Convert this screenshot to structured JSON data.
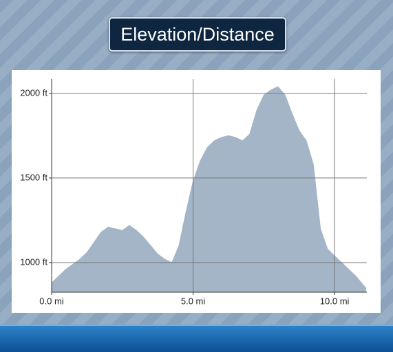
{
  "chart_data": {
    "type": "area",
    "title": "Elevation/Distance",
    "color": "#a3b5c6",
    "x": [
      0,
      0.25,
      0.5,
      0.75,
      1.0,
      1.25,
      1.5,
      1.75,
      2.0,
      2.25,
      2.5,
      2.75,
      3.0,
      3.25,
      3.5,
      3.75,
      4.0,
      4.25,
      4.5,
      4.75,
      5.0,
      5.25,
      5.5,
      5.75,
      6.0,
      6.25,
      6.5,
      6.75,
      7.0,
      7.25,
      7.5,
      7.75,
      8.0,
      8.25,
      8.5,
      8.75,
      9.0,
      9.25,
      9.5,
      9.75,
      10.0,
      10.25,
      10.5,
      10.75,
      11.0,
      11.1
    ],
    "values": [
      880,
      920,
      960,
      990,
      1020,
      1060,
      1120,
      1180,
      1210,
      1200,
      1190,
      1220,
      1190,
      1150,
      1100,
      1050,
      1020,
      1000,
      1100,
      1300,
      1480,
      1600,
      1680,
      1720,
      1740,
      1750,
      1740,
      1720,
      1760,
      1900,
      1990,
      2020,
      2040,
      1990,
      1880,
      1780,
      1720,
      1580,
      1200,
      1080,
      1040,
      1000,
      960,
      920,
      870,
      850
    ],
    "xlim": [
      0,
      11.14
    ],
    "ylim": [
      825,
      2085
    ],
    "xticks": [
      {
        "value": 0,
        "label": "0.0 mi"
      },
      {
        "value": 5,
        "label": "5.0 mi"
      },
      {
        "value": 10,
        "label": "10.0 mi"
      }
    ],
    "yticks": [
      {
        "value": 1000,
        "label": "1000 ft"
      },
      {
        "value": 1500,
        "label": "1500 ft"
      },
      {
        "value": 2000,
        "label": "2000 ft"
      }
    ],
    "grid": true
  }
}
